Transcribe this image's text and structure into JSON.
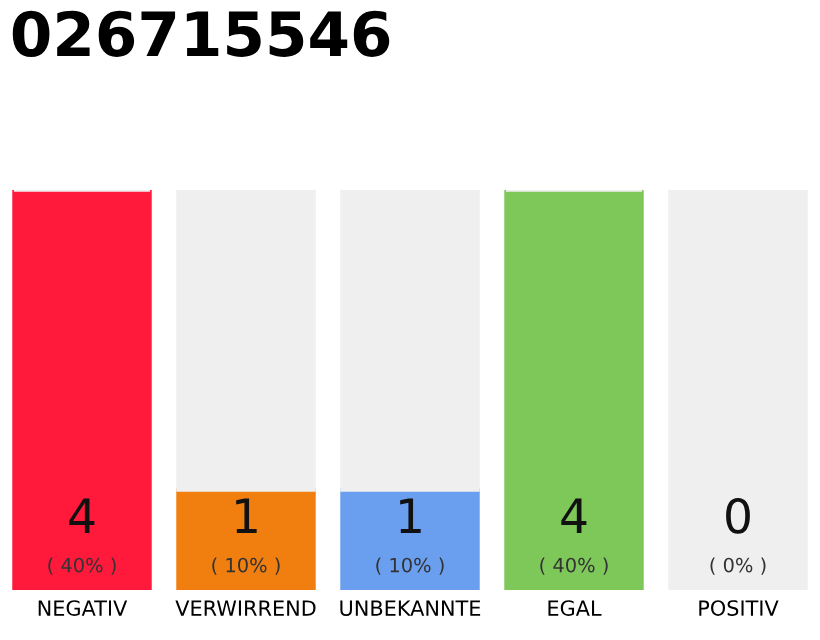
{
  "chart_data": {
    "type": "bar",
    "title": "026715546",
    "stacked": true,
    "categories": [
      "NEGATIV",
      "VERWIRREND",
      "UNBEKANNTE",
      "EGAL",
      "POSITIV"
    ],
    "series": [
      {
        "color": "#ff1a3c",
        "colors": [
          "#ff1a3c",
          "#f07f0f",
          "#6a9ff0",
          "#7ec85a",
          "#28a745"
        ],
        "values": [
          4,
          1,
          1,
          4,
          0
        ],
        "value_labels": [
          "4",
          "1",
          "1",
          "4",
          "0"
        ]
      },
      {
        "color": "#efefef",
        "values": [
          0,
          3,
          3,
          0,
          4
        ]
      }
    ],
    "ylim": [
      0,
      4
    ],
    "tick_labels": "x",
    "grid": false,
    "legend": false,
    "annotations": [
      {
        "text": "( 40% )",
        "x": "NEGATIV",
        "y": 0
      },
      {
        "text": "( 10% )",
        "x": "VERWIRREND",
        "y": 0
      },
      {
        "text": "( 10% )",
        "x": "UNBEKANNTE",
        "y": 0
      },
      {
        "text": "( 40% )",
        "x": "EGAL",
        "y": 0
      },
      {
        "text": "( 0% )",
        "x": "POSITIV",
        "y": 0
      }
    ]
  }
}
